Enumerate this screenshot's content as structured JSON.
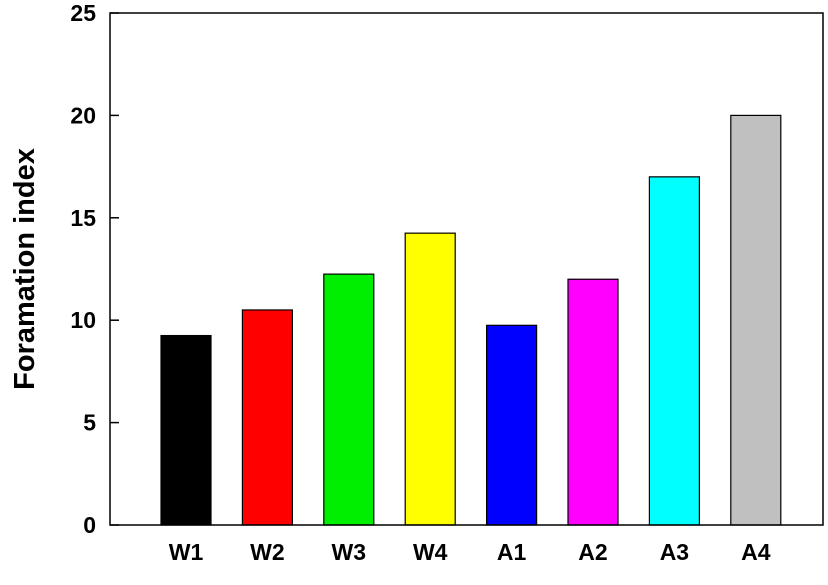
{
  "chart_data": {
    "type": "bar",
    "title": "",
    "xlabel": "",
    "ylabel": "Foramation index",
    "categories": [
      "W1",
      "W2",
      "W3",
      "W4",
      "A1",
      "A2",
      "A3",
      "A4"
    ],
    "values": [
      9.25,
      10.5,
      12.25,
      14.25,
      9.75,
      12.0,
      17.0,
      20.0
    ],
    "colors": [
      "#000000",
      "#ff0000",
      "#00ee00",
      "#ffff00",
      "#0000ff",
      "#ff00ff",
      "#00ffff",
      "#c0c0c0"
    ],
    "ylim": [
      0,
      25
    ],
    "yticks": [
      0,
      5,
      10,
      15,
      20,
      25
    ],
    "ytick_labels": [
      "0",
      "5",
      "10",
      "15",
      "20",
      "25"
    ],
    "grid": false,
    "legend": "none"
  }
}
